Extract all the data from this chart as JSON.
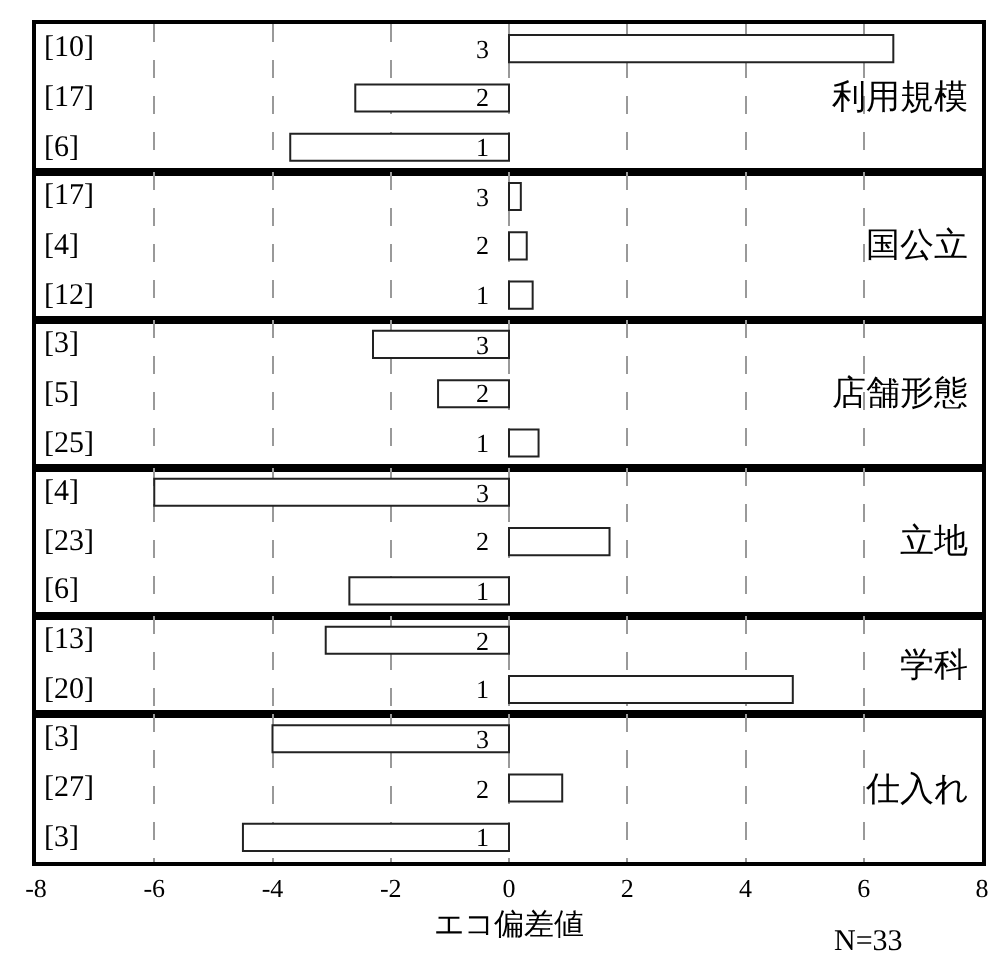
{
  "chart_data": [
    {
      "type": "bar",
      "orientation": "horizontal",
      "categories": [
        "[10]",
        "[17]",
        "[6]"
      ],
      "y2_categories": [
        "3",
        "2",
        "1"
      ],
      "values": [
        6.5,
        -2.6,
        -3.7
      ],
      "color": "#ffffff",
      "xlim": [
        -8,
        8
      ],
      "xticks": [
        -8,
        -6,
        -4,
        -2,
        0,
        2,
        4,
        6,
        8
      ],
      "grid": "x",
      "tick_labels": "y",
      "annotations": [
        "利用規模"
      ]
    },
    {
      "type": "bar",
      "orientation": "horizontal",
      "categories": [
        "[17]",
        "[4]",
        "[12]"
      ],
      "y2_categories": [
        "3",
        "2",
        "1"
      ],
      "values": [
        0.2,
        0.3,
        0.4
      ],
      "color": "#ffffff",
      "xlim": [
        -8,
        8
      ],
      "xticks": [
        -8,
        -6,
        -4,
        -2,
        0,
        2,
        4,
        6,
        8
      ],
      "grid": "x",
      "tick_labels": "y",
      "annotations": [
        "国公立"
      ]
    },
    {
      "type": "bar",
      "orientation": "horizontal",
      "categories": [
        "[3]",
        "[5]",
        "[25]"
      ],
      "y2_categories": [
        "3",
        "2",
        "1"
      ],
      "values": [
        -2.3,
        -1.2,
        0.5
      ],
      "color": "#ffffff",
      "xlim": [
        -8,
        8
      ],
      "xticks": [
        -8,
        -6,
        -4,
        -2,
        0,
        2,
        4,
        6,
        8
      ],
      "grid": "x",
      "tick_labels": "y",
      "annotations": [
        "店舗形態"
      ]
    },
    {
      "type": "bar",
      "orientation": "horizontal",
      "categories": [
        "[4]",
        "[23]",
        "[6]"
      ],
      "y2_categories": [
        "3",
        "2",
        "1"
      ],
      "values": [
        -6.0,
        1.7,
        -2.7
      ],
      "color": "#ffffff",
      "xlim": [
        -8,
        8
      ],
      "xticks": [
        -8,
        -6,
        -4,
        -2,
        0,
        2,
        4,
        6,
        8
      ],
      "grid": "x",
      "tick_labels": "y",
      "annotations": [
        "立地"
      ]
    },
    {
      "type": "bar",
      "orientation": "horizontal",
      "categories": [
        "[13]",
        "[20]"
      ],
      "y2_categories": [
        "2",
        "1"
      ],
      "values": [
        -3.1,
        4.8
      ],
      "color": "#ffffff",
      "xlim": [
        -8,
        8
      ],
      "xticks": [
        -8,
        -6,
        -4,
        -2,
        0,
        2,
        4,
        6,
        8
      ],
      "grid": "x",
      "tick_labels": "y",
      "annotations": [
        "学科"
      ]
    },
    {
      "type": "bar",
      "orientation": "horizontal",
      "categories": [
        "[3]",
        "[27]",
        "[3]"
      ],
      "y2_categories": [
        "3",
        "2",
        "1"
      ],
      "values": [
        -4.0,
        0.9,
        -4.5
      ],
      "color": "#ffffff",
      "xlim": [
        -8,
        8
      ],
      "xticks": [
        -8,
        -6,
        -4,
        -2,
        0,
        2,
        4,
        6,
        8
      ],
      "grid": "x",
      "xlabel": "エコ偏差値",
      "annotations": [
        "仕入れ",
        "N=33"
      ]
    }
  ]
}
